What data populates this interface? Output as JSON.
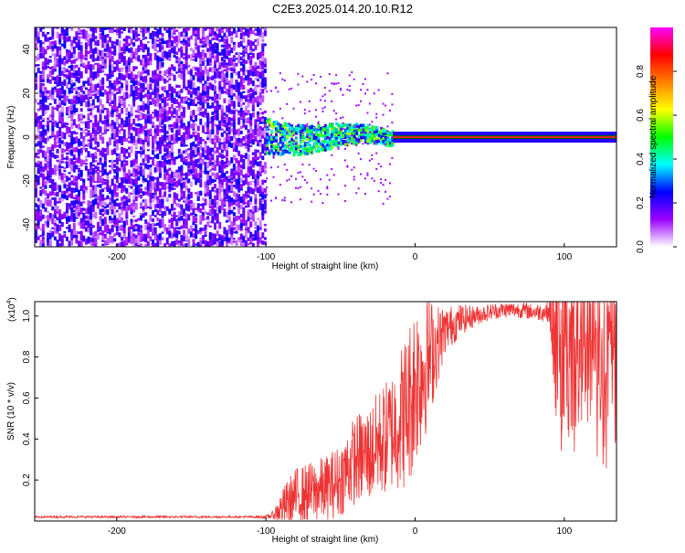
{
  "title": "C2E3.2025.014.20.10.R12",
  "colors": {
    "snr_line": "#ee3333",
    "spectrum_noise": "#8a3cf0",
    "ridge": "#dd2222",
    "ridge_outline": "#006400"
  },
  "chart_data": [
    {
      "type": "heatmap",
      "xlabel": "Height of straight line (km)",
      "ylabel": "Frequency (Hz)",
      "xlim": [
        -255,
        135
      ],
      "ylim": [
        -50,
        50
      ],
      "xticks": [
        -200,
        -100,
        0,
        100
      ],
      "xtick_labels": [
        "-200",
        "-100",
        "0",
        "100"
      ],
      "yticks": [
        -40,
        -20,
        0,
        20,
        40
      ],
      "ytick_labels": [
        "-40",
        "-20",
        "0",
        "20",
        "40"
      ],
      "colorbar": {
        "label": "Normalized spectral amplitude",
        "range": [
          0,
          1
        ],
        "ticks": [
          0.0,
          0.2,
          0.4,
          0.6,
          0.8
        ],
        "tick_labels": [
          "0.0",
          "0.2",
          "0.4",
          "0.6",
          "0.8"
        ],
        "stops": [
          "#ffffff",
          "#9a00ff",
          "#0000ff",
          "#00ffff",
          "#00ff00",
          "#ffff00",
          "#ff8000",
          "#ff0000",
          "#ff00ff"
        ]
      },
      "regions": [
        {
          "x": [
            -255,
            -100
          ],
          "description": "broadband noise",
          "amplitude": [
            0.05,
            0.25
          ]
        },
        {
          "x": [
            -100,
            -15
          ],
          "description": "scattered signal",
          "freq_spread": 8,
          "amplitude": [
            0.2,
            0.6
          ]
        },
        {
          "x": [
            -15,
            135
          ],
          "description": "narrow tone at 0 Hz",
          "amplitude": 0.95
        }
      ]
    },
    {
      "type": "line",
      "xlabel": "Height of straight line (km)",
      "ylabel": "SNR (10 * v/v)",
      "y_multiplier": "(x10^4)",
      "y_multiplier_base": "(x10",
      "y_multiplier_exp": "4",
      "y_multiplier_close": ")",
      "xlim": [
        -255,
        135
      ],
      "ylim": [
        0,
        1.07
      ],
      "xticks": [
        -200,
        -100,
        0,
        100
      ],
      "xtick_labels": [
        "-200",
        "-100",
        "0",
        "100"
      ],
      "yticks": [
        0.2,
        0.4,
        0.6,
        0.8,
        1.0
      ],
      "ytick_labels": [
        "0.2",
        "0.4",
        "0.6",
        "0.8",
        "1.0"
      ],
      "series": [
        {
          "x": [
            -255,
            -200,
            -150,
            -110,
            -100,
            -95,
            -90,
            -85,
            -80,
            -70,
            -60,
            -50,
            -45,
            -40,
            -30,
            -25,
            -20,
            -15,
            -10,
            -5,
            0,
            5,
            10,
            15,
            20,
            30,
            40,
            50,
            60,
            70,
            80,
            90,
            95,
            100,
            110,
            120,
            130,
            135
          ],
          "y": [
            0.02,
            0.02,
            0.02,
            0.02,
            0.02,
            0.03,
            0.06,
            0.09,
            0.12,
            0.14,
            0.16,
            0.2,
            0.26,
            0.3,
            0.33,
            0.38,
            0.4,
            0.45,
            0.5,
            0.55,
            0.68,
            0.74,
            0.8,
            0.86,
            0.93,
            0.98,
            1.0,
            1.02,
            1.03,
            1.03,
            1.02,
            1.02,
            0.95,
            0.9,
            0.88,
            0.9,
            0.95,
            0.98
          ],
          "spread": [
            0.005,
            0.005,
            0.005,
            0.005,
            0.008,
            0.02,
            0.08,
            0.12,
            0.14,
            0.15,
            0.16,
            0.18,
            0.2,
            0.22,
            0.24,
            0.26,
            0.28,
            0.3,
            0.35,
            0.4,
            0.42,
            0.38,
            0.3,
            0.2,
            0.12,
            0.08,
            0.05,
            0.04,
            0.04,
            0.04,
            0.04,
            0.05,
            0.5,
            0.5,
            0.45,
            0.45,
            0.5,
            0.5
          ]
        }
      ]
    }
  ]
}
